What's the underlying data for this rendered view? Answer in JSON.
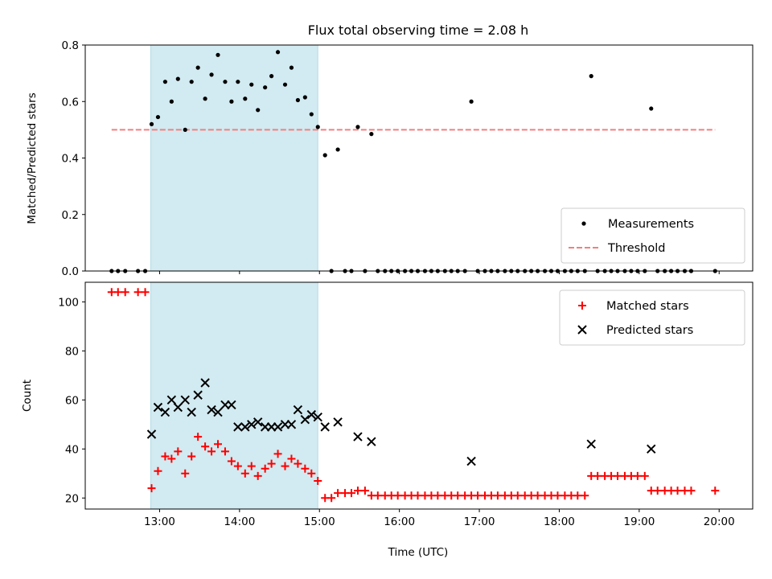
{
  "chart_data": [
    {
      "type": "scatter",
      "title": "Flux total observing time = 2.08 h",
      "xlabel": "",
      "ylabel": "Matched/Predicted stars",
      "xlim": [
        12.07,
        20.42
      ],
      "ylim": [
        0,
        0.8
      ],
      "x_ticks": [
        "13:00",
        "14:00",
        "15:00",
        "16:00",
        "17:00",
        "18:00",
        "19:00",
        "20:00"
      ],
      "y_ticks": [
        "0.0",
        "0.2",
        "0.4",
        "0.6",
        "0.8"
      ],
      "shaded_region": {
        "x_start": 12.89,
        "x_end": 14.98,
        "color": "#add8e6"
      },
      "threshold": {
        "value": 0.5,
        "x_start": 12.4,
        "x_end": 19.95,
        "color": "#f08080"
      },
      "legend": {
        "position": "bottom-right",
        "entries": [
          {
            "label": "Measurements",
            "marker": "dot",
            "color": "#000000"
          },
          {
            "label": "Threshold",
            "marker": "dashed-line",
            "color": "#f08080"
          }
        ]
      },
      "series": [
        {
          "name": "Measurements",
          "color": "#000000",
          "points": [
            [
              12.4,
              0
            ],
            [
              12.48,
              0
            ],
            [
              12.57,
              0
            ],
            [
              12.73,
              0
            ],
            [
              12.82,
              0
            ],
            [
              12.9,
              0.52
            ],
            [
              12.98,
              0.545
            ],
            [
              13.07,
              0.67
            ],
            [
              13.15,
              0.6
            ],
            [
              13.23,
              0.68
            ],
            [
              13.32,
              0.5
            ],
            [
              13.4,
              0.67
            ],
            [
              13.48,
              0.72
            ],
            [
              13.57,
              0.61
            ],
            [
              13.65,
              0.695
            ],
            [
              13.73,
              0.765
            ],
            [
              13.82,
              0.67
            ],
            [
              13.9,
              0.6
            ],
            [
              13.98,
              0.67
            ],
            [
              14.07,
              0.61
            ],
            [
              14.15,
              0.66
            ],
            [
              14.23,
              0.57
            ],
            [
              14.32,
              0.65
            ],
            [
              14.4,
              0.69
            ],
            [
              14.48,
              0.775
            ],
            [
              14.57,
              0.66
            ],
            [
              14.65,
              0.72
            ],
            [
              14.73,
              0.605
            ],
            [
              14.82,
              0.615
            ],
            [
              14.9,
              0.555
            ],
            [
              14.98,
              0.51
            ],
            [
              15.07,
              0.41
            ],
            [
              15.15,
              0
            ],
            [
              15.23,
              0.43
            ],
            [
              15.32,
              0
            ],
            [
              15.4,
              0
            ],
            [
              15.48,
              0.51
            ],
            [
              15.57,
              0
            ],
            [
              15.65,
              0.485
            ],
            [
              15.73,
              0
            ],
            [
              15.82,
              0
            ],
            [
              15.9,
              0
            ],
            [
              15.98,
              0
            ],
            [
              16.07,
              0
            ],
            [
              16.15,
              0
            ],
            [
              16.23,
              0
            ],
            [
              16.32,
              0
            ],
            [
              16.4,
              0
            ],
            [
              16.48,
              0
            ],
            [
              16.57,
              0
            ],
            [
              16.65,
              0
            ],
            [
              16.73,
              0
            ],
            [
              16.82,
              0
            ],
            [
              16.9,
              0.6
            ],
            [
              16.98,
              0
            ],
            [
              17.07,
              0
            ],
            [
              17.15,
              0
            ],
            [
              17.23,
              0
            ],
            [
              17.32,
              0
            ],
            [
              17.4,
              0
            ],
            [
              17.48,
              0
            ],
            [
              17.57,
              0
            ],
            [
              17.65,
              0
            ],
            [
              17.73,
              0
            ],
            [
              17.82,
              0
            ],
            [
              17.9,
              0
            ],
            [
              17.98,
              0
            ],
            [
              18.07,
              0
            ],
            [
              18.15,
              0
            ],
            [
              18.23,
              0
            ],
            [
              18.32,
              0
            ],
            [
              18.4,
              0.69
            ],
            [
              18.48,
              0
            ],
            [
              18.57,
              0
            ],
            [
              18.65,
              0
            ],
            [
              18.73,
              0
            ],
            [
              18.82,
              0
            ],
            [
              18.9,
              0
            ],
            [
              18.98,
              0
            ],
            [
              19.07,
              0
            ],
            [
              19.15,
              0.575
            ],
            [
              19.23,
              0
            ],
            [
              19.32,
              0
            ],
            [
              19.4,
              0
            ],
            [
              19.48,
              0
            ],
            [
              19.57,
              0
            ],
            [
              19.65,
              0
            ],
            [
              19.95,
              0
            ]
          ]
        }
      ]
    },
    {
      "type": "scatter",
      "title": "",
      "xlabel": "Time (UTC)",
      "ylabel": "Count",
      "xlim": [
        12.07,
        20.42
      ],
      "ylim": [
        15.5,
        108
      ],
      "x_ticks": [
        "13:00",
        "14:00",
        "15:00",
        "16:00",
        "17:00",
        "18:00",
        "19:00",
        "20:00"
      ],
      "y_ticks": [
        "20",
        "40",
        "60",
        "80",
        "100"
      ],
      "shaded_region": {
        "x_start": 12.89,
        "x_end": 14.98,
        "color": "#add8e6"
      },
      "legend": {
        "position": "top-right",
        "entries": [
          {
            "label": "Matched stars",
            "marker": "plus",
            "color": "#ff0000"
          },
          {
            "label": "Predicted stars",
            "marker": "x",
            "color": "#000000"
          }
        ]
      },
      "series": [
        {
          "name": "Matched stars",
          "marker": "plus",
          "color": "#ff0000",
          "points": [
            [
              12.4,
              104
            ],
            [
              12.48,
              104
            ],
            [
              12.57,
              104
            ],
            [
              12.73,
              104
            ],
            [
              12.82,
              104
            ],
            [
              12.9,
              24
            ],
            [
              12.98,
              31
            ],
            [
              13.07,
              37
            ],
            [
              13.15,
              36
            ],
            [
              13.23,
              39
            ],
            [
              13.32,
              30
            ],
            [
              13.4,
              37
            ],
            [
              13.48,
              45
            ],
            [
              13.57,
              41
            ],
            [
              13.65,
              39
            ],
            [
              13.73,
              42
            ],
            [
              13.82,
              39
            ],
            [
              13.9,
              35
            ],
            [
              13.98,
              33
            ],
            [
              14.07,
              30
            ],
            [
              14.15,
              33
            ],
            [
              14.23,
              29
            ],
            [
              14.32,
              32
            ],
            [
              14.4,
              34
            ],
            [
              14.48,
              38
            ],
            [
              14.57,
              33
            ],
            [
              14.65,
              36
            ],
            [
              14.73,
              34
            ],
            [
              14.82,
              32
            ],
            [
              14.9,
              30
            ],
            [
              14.98,
              27
            ],
            [
              15.07,
              20
            ],
            [
              15.15,
              20
            ],
            [
              15.23,
              22
            ],
            [
              15.32,
              22
            ],
            [
              15.4,
              22
            ],
            [
              15.48,
              23
            ],
            [
              15.57,
              23
            ],
            [
              15.65,
              21
            ],
            [
              15.73,
              21
            ],
            [
              15.82,
              21
            ],
            [
              15.9,
              21
            ],
            [
              15.98,
              21
            ],
            [
              16.07,
              21
            ],
            [
              16.15,
              21
            ],
            [
              16.23,
              21
            ],
            [
              16.32,
              21
            ],
            [
              16.4,
              21
            ],
            [
              16.48,
              21
            ],
            [
              16.57,
              21
            ],
            [
              16.65,
              21
            ],
            [
              16.73,
              21
            ],
            [
              16.82,
              21
            ],
            [
              16.9,
              21
            ],
            [
              16.98,
              21
            ],
            [
              17.07,
              21
            ],
            [
              17.15,
              21
            ],
            [
              17.23,
              21
            ],
            [
              17.32,
              21
            ],
            [
              17.4,
              21
            ],
            [
              17.48,
              21
            ],
            [
              17.57,
              21
            ],
            [
              17.65,
              21
            ],
            [
              17.73,
              21
            ],
            [
              17.82,
              21
            ],
            [
              17.9,
              21
            ],
            [
              17.98,
              21
            ],
            [
              18.07,
              21
            ],
            [
              18.15,
              21
            ],
            [
              18.23,
              21
            ],
            [
              18.32,
              21
            ],
            [
              18.4,
              29
            ],
            [
              18.48,
              29
            ],
            [
              18.57,
              29
            ],
            [
              18.65,
              29
            ],
            [
              18.73,
              29
            ],
            [
              18.82,
              29
            ],
            [
              18.9,
              29
            ],
            [
              18.98,
              29
            ],
            [
              19.07,
              29
            ],
            [
              19.15,
              23
            ],
            [
              19.23,
              23
            ],
            [
              19.32,
              23
            ],
            [
              19.4,
              23
            ],
            [
              19.48,
              23
            ],
            [
              19.57,
              23
            ],
            [
              19.65,
              23
            ],
            [
              19.95,
              23
            ]
          ]
        },
        {
          "name": "Predicted stars",
          "marker": "x",
          "color": "#000000",
          "points": [
            [
              12.9,
              46
            ],
            [
              12.98,
              57
            ],
            [
              13.07,
              55
            ],
            [
              13.15,
              60
            ],
            [
              13.23,
              57
            ],
            [
              13.32,
              60
            ],
            [
              13.4,
              55
            ],
            [
              13.48,
              62
            ],
            [
              13.57,
              67
            ],
            [
              13.65,
              56
            ],
            [
              13.73,
              55
            ],
            [
              13.82,
              58
            ],
            [
              13.9,
              58
            ],
            [
              13.98,
              49
            ],
            [
              14.07,
              49
            ],
            [
              14.15,
              50
            ],
            [
              14.23,
              51
            ],
            [
              14.32,
              49
            ],
            [
              14.4,
              49
            ],
            [
              14.48,
              49
            ],
            [
              14.57,
              50
            ],
            [
              14.65,
              50
            ],
            [
              14.73,
              56
            ],
            [
              14.82,
              52
            ],
            [
              14.9,
              54
            ],
            [
              14.98,
              53
            ],
            [
              15.07,
              49
            ],
            [
              15.23,
              51
            ],
            [
              15.48,
              45
            ],
            [
              15.65,
              43
            ],
            [
              16.9,
              35
            ],
            [
              18.4,
              42
            ],
            [
              19.15,
              40
            ]
          ]
        }
      ]
    }
  ]
}
